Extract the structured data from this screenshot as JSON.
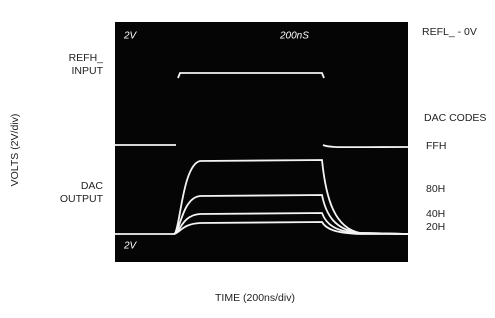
{
  "screen": {
    "top_left_scale": "2V",
    "timebase": "200nS",
    "bottom_left_scale": "2V"
  },
  "labels": {
    "refl": "REFL_ - 0V",
    "refh_line1": "REFH_",
    "refh_line2": "INPUT",
    "dac_codes": "DAC CODES",
    "dac_line1": "DAC",
    "dac_line2": "OUTPUT",
    "codes": [
      "FFH",
      "80H",
      "40H",
      "20H"
    ]
  },
  "axes": {
    "y_label": "VOLTS (2V/div)",
    "x_label": "TIME (200ns/div)"
  }
}
